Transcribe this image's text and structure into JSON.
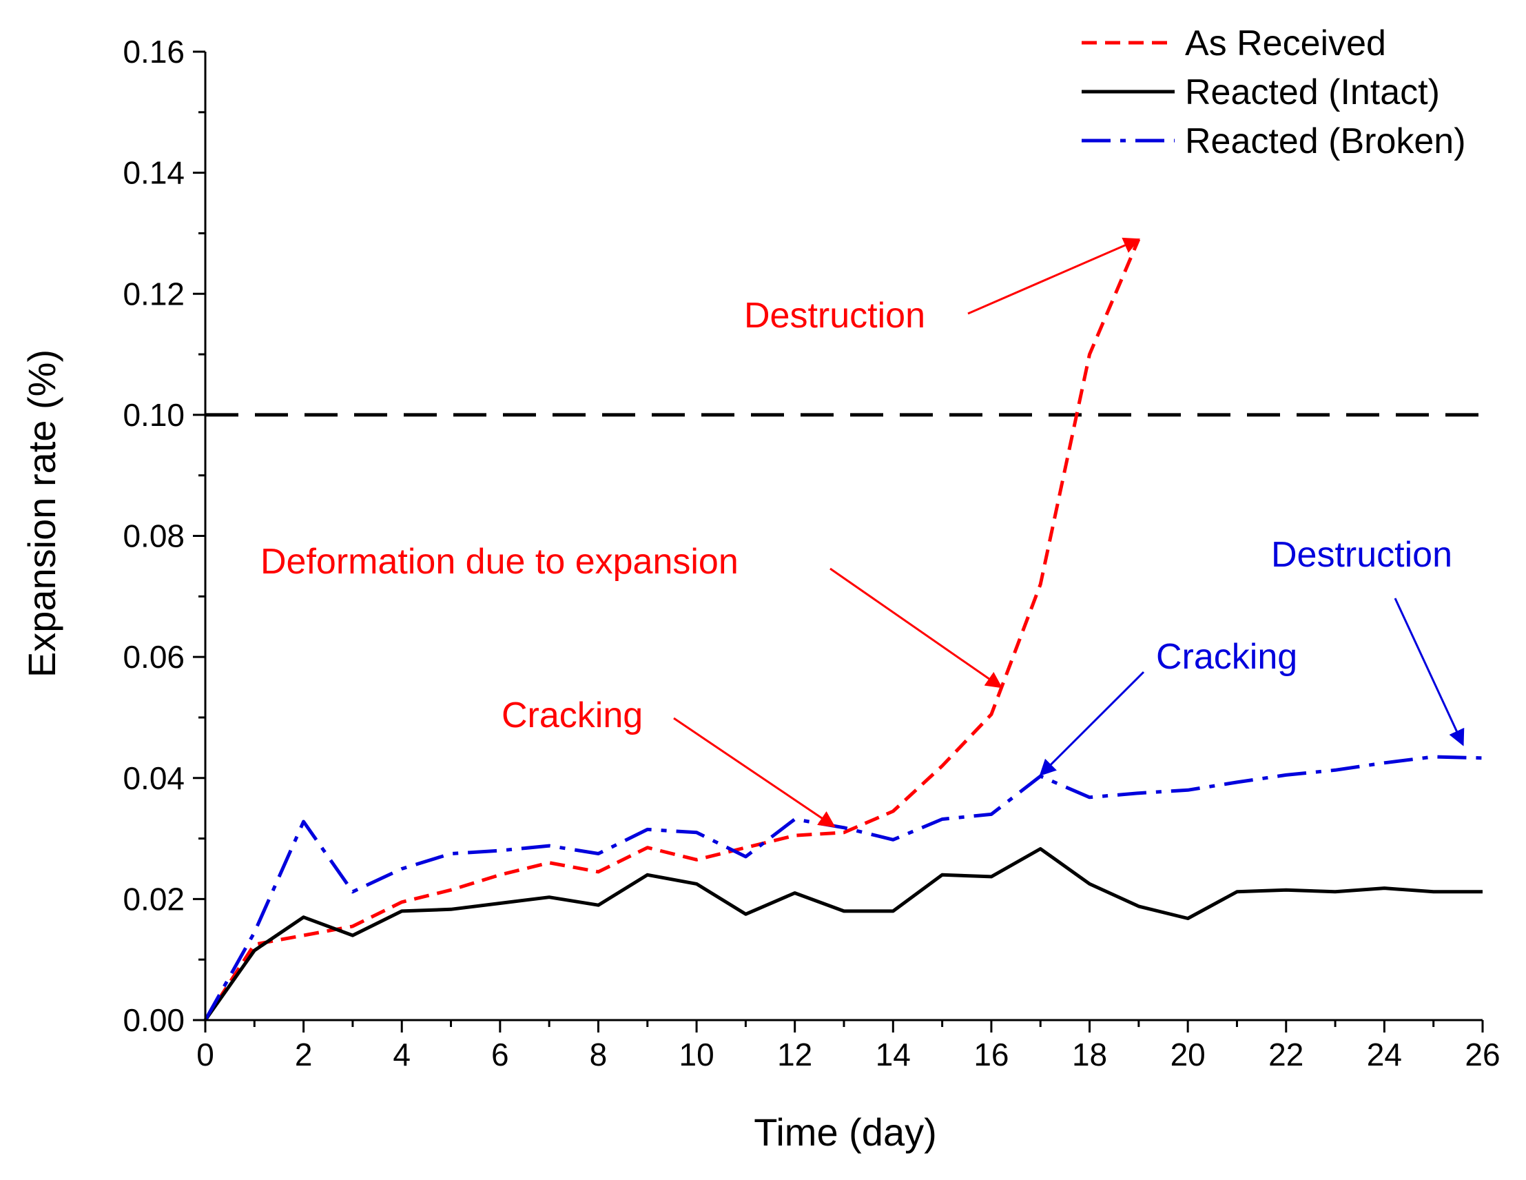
{
  "chart_data": {
    "type": "line",
    "title": "",
    "xlabel": "Time (day)",
    "ylabel": "Expansion rate (%)",
    "xlim": [
      0,
      26
    ],
    "ylim": [
      0,
      0.16
    ],
    "xticks": [
      0,
      2,
      4,
      6,
      8,
      10,
      12,
      14,
      16,
      18,
      20,
      22,
      24,
      26
    ],
    "yticks": [
      0.0,
      0.02,
      0.04,
      0.06,
      0.08,
      0.1,
      0.12,
      0.14,
      0.16
    ],
    "xtick_labels": [
      "0",
      "2",
      "4",
      "6",
      "8",
      "10",
      "12",
      "14",
      "16",
      "18",
      "20",
      "22",
      "24",
      "26"
    ],
    "ytick_labels": [
      "0.00",
      "0.02",
      "0.04",
      "0.06",
      "0.08",
      "0.10",
      "0.12",
      "0.14",
      "0.16"
    ],
    "grid": false,
    "legend_position": "top-right",
    "threshold": {
      "y": 0.1,
      "style": "dashed",
      "color": "#000000"
    },
    "series": [
      {
        "name": "As Received",
        "color": "#ff0000",
        "style": "dashed",
        "x": [
          0,
          1,
          2,
          3,
          4,
          5,
          6,
          7,
          8,
          9,
          10,
          11,
          12,
          13,
          14,
          15,
          16,
          17,
          18,
          19
        ],
        "y": [
          0,
          0.0125,
          0.014,
          0.0155,
          0.0195,
          0.0215,
          0.024,
          0.026,
          0.0245,
          0.0285,
          0.0265,
          0.0285,
          0.0305,
          0.031,
          0.0345,
          0.042,
          0.0505,
          0.072,
          0.11,
          0.129
        ]
      },
      {
        "name": "Reacted (Intact)",
        "color": "#000000",
        "style": "solid",
        "x": [
          0,
          1,
          2,
          3,
          4,
          5,
          6,
          7,
          8,
          9,
          10,
          11,
          12,
          13,
          14,
          15,
          16,
          17,
          18,
          19,
          20,
          21,
          22,
          23,
          24,
          25,
          26
        ],
        "y": [
          0,
          0.0115,
          0.017,
          0.014,
          0.018,
          0.0183,
          0.0193,
          0.0203,
          0.019,
          0.024,
          0.0225,
          0.0175,
          0.021,
          0.018,
          0.018,
          0.024,
          0.0237,
          0.0283,
          0.0225,
          0.0188,
          0.0168,
          0.0212,
          0.0215,
          0.0212,
          0.0218,
          0.0212,
          0.0212
        ]
      },
      {
        "name": "Reacted (Broken)",
        "color": "#0000dd",
        "style": "dashdot",
        "x": [
          0,
          1,
          2,
          3,
          4,
          5,
          6,
          7,
          8,
          9,
          10,
          11,
          12,
          13,
          14,
          15,
          16,
          17,
          18,
          19,
          20,
          21,
          22,
          23,
          24,
          25,
          26
        ],
        "y": [
          0,
          0.0145,
          0.0328,
          0.0212,
          0.025,
          0.0275,
          0.028,
          0.0288,
          0.0275,
          0.0315,
          0.031,
          0.027,
          0.0332,
          0.0318,
          0.0298,
          0.0332,
          0.034,
          0.0403,
          0.0368,
          0.0375,
          0.038,
          0.0393,
          0.0405,
          0.0413,
          0.0425,
          0.0435,
          0.0433
        ]
      }
    ],
    "annotations": [
      {
        "text": "Destruction",
        "color": "#ff0000",
        "target": [
          19,
          0.129
        ]
      },
      {
        "text": "Deformation due to expansion",
        "color": "#ff0000",
        "target": [
          16.2,
          0.055
        ]
      },
      {
        "text": "Cracking",
        "color": "#ff0000",
        "target": [
          12.8,
          0.032
        ]
      },
      {
        "text": "Cracking",
        "color": "#0000dd",
        "target": [
          17.0,
          0.0405
        ]
      },
      {
        "text": "Destruction",
        "color": "#0000dd",
        "target": [
          25.6,
          0.0455
        ]
      }
    ]
  }
}
